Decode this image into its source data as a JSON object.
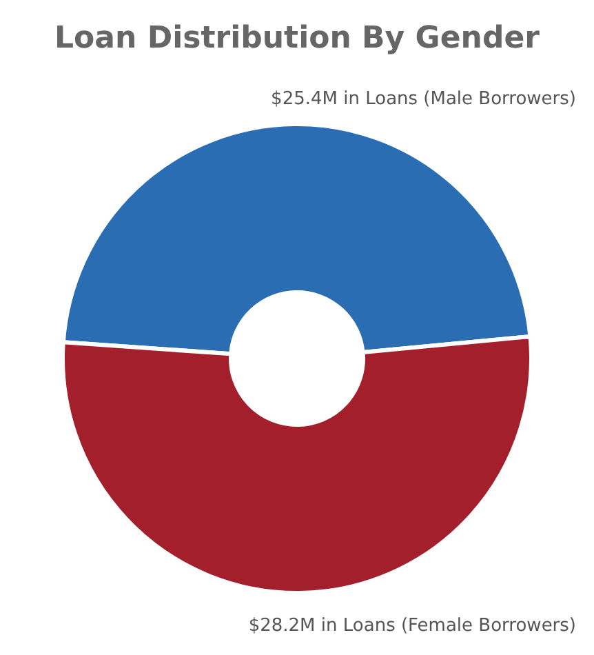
{
  "chart_data": {
    "type": "donut",
    "title": "Loan Distribution By Gender",
    "categories": [
      "$25.4M in Loans (Male Borrowers)",
      "$28.2M in Loans (Female Borrowers)"
    ],
    "values": [
      25.4,
      28.2
    ],
    "colors": [
      "#2a6db3",
      "#a31f2b"
    ],
    "legend": false
  }
}
